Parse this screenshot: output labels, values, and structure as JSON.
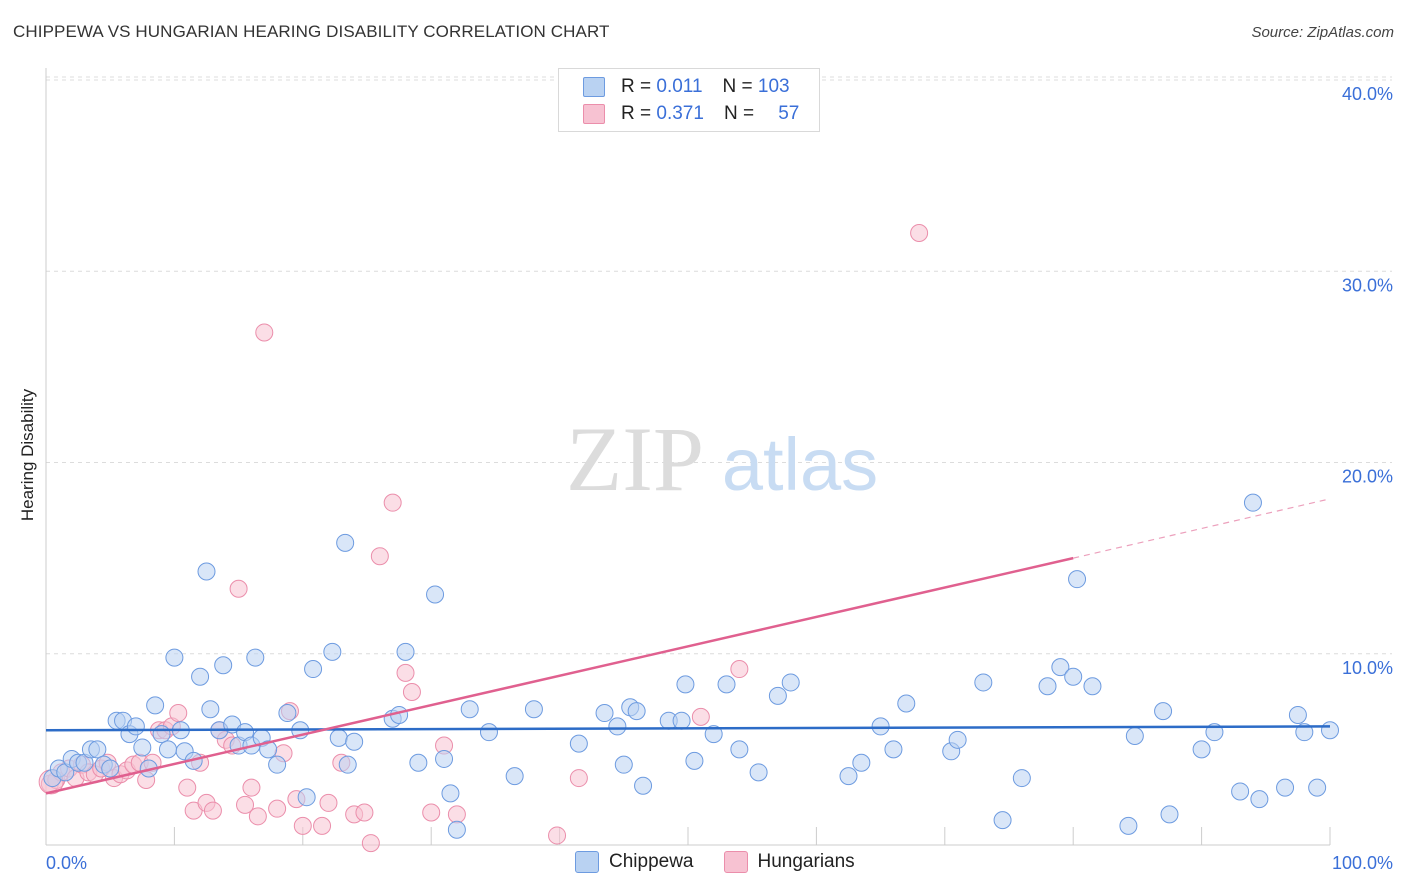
{
  "header": {
    "title": "CHIPPEWA VS HUNGARIAN HEARING DISABILITY CORRELATION CHART",
    "source": "Source: ZipAtlas.com"
  },
  "watermark": {
    "zip": "ZIP",
    "atlas": "atlas"
  },
  "legend_top": [
    {
      "r_label": "R =",
      "r_value": "0.011",
      "n_label": "N =",
      "n_value": "103"
    },
    {
      "r_label": "R =",
      "r_value": "0.371",
      "n_label": "N =",
      "n_value": "57"
    }
  ],
  "legend_bottom": [
    "Chippewa",
    "Hungarians"
  ],
  "colors": {
    "chippewa_fill": "#b9d2f2",
    "chippewa_stroke": "#6d9be0",
    "chippewa_line": "#2d6cc7",
    "hungarians_fill": "#f7c2d2",
    "hungarians_stroke": "#eb8eab",
    "hungarians_line": "#e0608f",
    "tick_label": "#3a6fd8",
    "grid": "#dcdcdc"
  },
  "chart_data": {
    "type": "scatter",
    "title": "CHIPPEWA VS HUNGARIAN HEARING DISABILITY CORRELATION CHART",
    "xlabel": "",
    "ylabel": "Hearing Disability",
    "xlim": [
      0,
      100
    ],
    "ylim": [
      0,
      40
    ],
    "x_tick_labels": [
      "0.0%",
      "100.0%"
    ],
    "y_ticks": [
      10,
      20,
      30,
      40
    ],
    "y_tick_labels": [
      "10.0%",
      "20.0%",
      "30.0%",
      "40.0%"
    ],
    "grid": true,
    "legend_position": "top-center",
    "series": [
      {
        "name": "Chippewa",
        "r": 0.011,
        "n": 103,
        "trend": {
          "x0": 0,
          "y0": 6.0,
          "x1": 100,
          "y1": 6.2
        },
        "points": [
          [
            0.5,
            3.5
          ],
          [
            1,
            4.0
          ],
          [
            1.5,
            3.8
          ],
          [
            2,
            4.5
          ],
          [
            2.5,
            4.3
          ],
          [
            3,
            4.3
          ],
          [
            3.5,
            5.0
          ],
          [
            4,
            5.0
          ],
          [
            4.5,
            4.2
          ],
          [
            5,
            4.0
          ],
          [
            5.5,
            6.5
          ],
          [
            6,
            6.5
          ],
          [
            6.5,
            5.8
          ],
          [
            7,
            6.2
          ],
          [
            7.5,
            5.1
          ],
          [
            8,
            4.0
          ],
          [
            8.5,
            7.3
          ],
          [
            9,
            5.8
          ],
          [
            9.5,
            5.0
          ],
          [
            10,
            9.8
          ],
          [
            10.5,
            6.0
          ],
          [
            10.8,
            4.9
          ],
          [
            11.5,
            4.4
          ],
          [
            12,
            8.8
          ],
          [
            12.5,
            14.3
          ],
          [
            12.8,
            7.1
          ],
          [
            13.5,
            6.0
          ],
          [
            13.8,
            9.4
          ],
          [
            14.5,
            6.3
          ],
          [
            15,
            5.2
          ],
          [
            15.5,
            5.9
          ],
          [
            16,
            5.2
          ],
          [
            16.3,
            9.8
          ],
          [
            16.8,
            5.6
          ],
          [
            17.3,
            5.0
          ],
          [
            18,
            4.2
          ],
          [
            18.8,
            6.9
          ],
          [
            19.8,
            6.0
          ],
          [
            20.3,
            2.5
          ],
          [
            20.8,
            9.2
          ],
          [
            22.3,
            10.1
          ],
          [
            22.8,
            5.6
          ],
          [
            23.3,
            15.8
          ],
          [
            23.5,
            4.2
          ],
          [
            24,
            5.4
          ],
          [
            27,
            6.6
          ],
          [
            27.5,
            6.8
          ],
          [
            28,
            10.1
          ],
          [
            29,
            4.3
          ],
          [
            30.3,
            13.1
          ],
          [
            31,
            4.5
          ],
          [
            31.5,
            2.7
          ],
          [
            32,
            0.8
          ],
          [
            33,
            7.1
          ],
          [
            34.5,
            5.9
          ],
          [
            36.5,
            3.6
          ],
          [
            38,
            7.1
          ],
          [
            41.5,
            5.3
          ],
          [
            43.5,
            6.9
          ],
          [
            44.5,
            6.2
          ],
          [
            45,
            4.2
          ],
          [
            45.5,
            7.2
          ],
          [
            46,
            7.0
          ],
          [
            46.5,
            3.1
          ],
          [
            48.5,
            6.5
          ],
          [
            49.5,
            6.5
          ],
          [
            49.8,
            8.4
          ],
          [
            50.5,
            4.4
          ],
          [
            52,
            5.8
          ],
          [
            53,
            8.4
          ],
          [
            54,
            5.0
          ],
          [
            55.5,
            3.8
          ],
          [
            57,
            7.8
          ],
          [
            58,
            8.5
          ],
          [
            62.5,
            3.6
          ],
          [
            63.5,
            4.3
          ],
          [
            65,
            6.2
          ],
          [
            66,
            5.0
          ],
          [
            67,
            7.4
          ],
          [
            70.5,
            4.9
          ],
          [
            71,
            5.5
          ],
          [
            73,
            8.5
          ],
          [
            74.5,
            1.3
          ],
          [
            76,
            3.5
          ],
          [
            78,
            8.3
          ],
          [
            79,
            9.3
          ],
          [
            80,
            8.8
          ],
          [
            80.3,
            13.9
          ],
          [
            81.5,
            8.3
          ],
          [
            84.3,
            1.0
          ],
          [
            84.8,
            5.7
          ],
          [
            87,
            7.0
          ],
          [
            87.5,
            1.6
          ],
          [
            90,
            5.0
          ],
          [
            91,
            5.9
          ],
          [
            93,
            2.8
          ],
          [
            94,
            17.9
          ],
          [
            94.5,
            2.4
          ],
          [
            96.5,
            3.0
          ],
          [
            97.5,
            6.8
          ],
          [
            98,
            5.9
          ],
          [
            99,
            3.0
          ],
          [
            100,
            6.0
          ]
        ]
      },
      {
        "name": "Hungarians",
        "r": 0.371,
        "n": 57,
        "trend": {
          "x0": 0,
          "y0": 2.7,
          "x1": 80,
          "y1": 15.0
        },
        "trend_dashed": {
          "x0": 80,
          "y0": 15.0,
          "x1": 100,
          "y1": 18.1
        },
        "points": [
          [
            0.3,
            3.2
          ],
          [
            0.8,
            3.4
          ],
          [
            1.2,
            3.8
          ],
          [
            1.8,
            4.0
          ],
          [
            2.3,
            3.5
          ],
          [
            2.8,
            4.2
          ],
          [
            3.3,
            3.8
          ],
          [
            3.8,
            3.7
          ],
          [
            4.3,
            4.0
          ],
          [
            4.8,
            4.3
          ],
          [
            5.3,
            3.5
          ],
          [
            5.8,
            3.7
          ],
          [
            6.3,
            3.9
          ],
          [
            6.8,
            4.2
          ],
          [
            7.3,
            4.3
          ],
          [
            7.8,
            3.4
          ],
          [
            8.3,
            4.3
          ],
          [
            8.8,
            6.0
          ],
          [
            9.3,
            6.0
          ],
          [
            9.8,
            6.2
          ],
          [
            10.3,
            6.9
          ],
          [
            11,
            3.0
          ],
          [
            11.5,
            1.8
          ],
          [
            12,
            4.3
          ],
          [
            12.5,
            2.2
          ],
          [
            13,
            1.8
          ],
          [
            13.5,
            6.0
          ],
          [
            14,
            5.5
          ],
          [
            14.5,
            5.2
          ],
          [
            15,
            13.4
          ],
          [
            15.5,
            2.1
          ],
          [
            16,
            3.0
          ],
          [
            16.5,
            1.5
          ],
          [
            17,
            26.8
          ],
          [
            18,
            1.9
          ],
          [
            18.5,
            4.8
          ],
          [
            19,
            7.0
          ],
          [
            19.5,
            2.4
          ],
          [
            20,
            1.0
          ],
          [
            21.5,
            1.0
          ],
          [
            22,
            2.2
          ],
          [
            23,
            4.3
          ],
          [
            24,
            1.6
          ],
          [
            24.8,
            1.7
          ],
          [
            25.3,
            0.1
          ],
          [
            26,
            15.1
          ],
          [
            27,
            17.9
          ],
          [
            28,
            9.0
          ],
          [
            28.5,
            8.0
          ],
          [
            30,
            1.7
          ],
          [
            31,
            5.2
          ],
          [
            32,
            1.6
          ],
          [
            39.8,
            0.5
          ],
          [
            41.5,
            3.5
          ],
          [
            51,
            6.7
          ],
          [
            54,
            9.2
          ],
          [
            68,
            32.0
          ]
        ]
      }
    ]
  }
}
